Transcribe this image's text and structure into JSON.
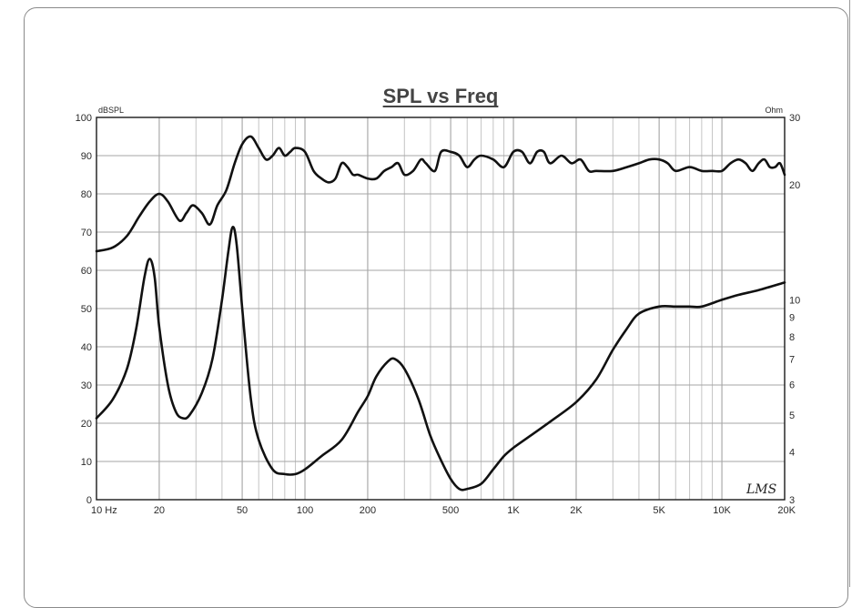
{
  "chart_data": {
    "type": "line",
    "title": "SPL vs Freq",
    "left_unit": "dBSPL",
    "right_unit": "Ohm",
    "x_axis": {
      "scale": "log",
      "range": [
        10,
        20000
      ],
      "tick_labels": [
        {
          "v": 10,
          "t": "10  Hz"
        },
        {
          "v": 20,
          "t": "20"
        },
        {
          "v": 50,
          "t": "50"
        },
        {
          "v": 100,
          "t": "100"
        },
        {
          "v": 200,
          "t": "200"
        },
        {
          "v": 500,
          "t": "500"
        },
        {
          "v": 1000,
          "t": "1K"
        },
        {
          "v": 2000,
          "t": "2K"
        },
        {
          "v": 5000,
          "t": "5K"
        },
        {
          "v": 10000,
          "t": "10K"
        },
        {
          "v": 20000,
          "t": "20K"
        }
      ]
    },
    "y_left": {
      "range": [
        0,
        100
      ],
      "ticks": [
        0,
        10,
        20,
        30,
        40,
        50,
        60,
        70,
        80,
        90,
        100
      ]
    },
    "y_right": {
      "scale": "log",
      "range": [
        3,
        30
      ],
      "ticks": [
        3,
        4,
        5,
        6,
        7,
        8,
        9,
        10,
        20,
        30
      ]
    },
    "grid": true,
    "series": [
      {
        "axis": "left",
        "points": [
          [
            10,
            65
          ],
          [
            12,
            66
          ],
          [
            14,
            69
          ],
          [
            16,
            74
          ],
          [
            18,
            78
          ],
          [
            20,
            80
          ],
          [
            22,
            78
          ],
          [
            25,
            73
          ],
          [
            27,
            75
          ],
          [
            29,
            77
          ],
          [
            32,
            75
          ],
          [
            35,
            72
          ],
          [
            38,
            77
          ],
          [
            42,
            81
          ],
          [
            46,
            88
          ],
          [
            50,
            93
          ],
          [
            55,
            95
          ],
          [
            60,
            92
          ],
          [
            65,
            89
          ],
          [
            70,
            90
          ],
          [
            75,
            92
          ],
          [
            80,
            90
          ],
          [
            85,
            91
          ],
          [
            90,
            92
          ],
          [
            100,
            91
          ],
          [
            110,
            86
          ],
          [
            120,
            84
          ],
          [
            130,
            83
          ],
          [
            140,
            84
          ],
          [
            150,
            88
          ],
          [
            160,
            87
          ],
          [
            170,
            85
          ],
          [
            180,
            85
          ],
          [
            200,
            84
          ],
          [
            220,
            84
          ],
          [
            240,
            86
          ],
          [
            260,
            87
          ],
          [
            280,
            88
          ],
          [
            300,
            85
          ],
          [
            330,
            86
          ],
          [
            360,
            89
          ],
          [
            380,
            88
          ],
          [
            420,
            86
          ],
          [
            450,
            91
          ],
          [
            500,
            91
          ],
          [
            550,
            90
          ],
          [
            600,
            87
          ],
          [
            650,
            89
          ],
          [
            700,
            90
          ],
          [
            800,
            89
          ],
          [
            900,
            87
          ],
          [
            1000,
            91
          ],
          [
            1100,
            91
          ],
          [
            1200,
            88
          ],
          [
            1300,
            91
          ],
          [
            1400,
            91
          ],
          [
            1500,
            88
          ],
          [
            1700,
            90
          ],
          [
            1900,
            88
          ],
          [
            2100,
            89
          ],
          [
            2300,
            86
          ],
          [
            2500,
            86
          ],
          [
            3000,
            86
          ],
          [
            3500,
            87
          ],
          [
            4000,
            88
          ],
          [
            4500,
            89
          ],
          [
            5000,
            89
          ],
          [
            5500,
            88
          ],
          [
            6000,
            86
          ],
          [
            7000,
            87
          ],
          [
            8000,
            86
          ],
          [
            9000,
            86
          ],
          [
            10000,
            86
          ],
          [
            11000,
            88
          ],
          [
            12000,
            89
          ],
          [
            13000,
            88
          ],
          [
            14000,
            86
          ],
          [
            15000,
            88
          ],
          [
            16000,
            89
          ],
          [
            17000,
            87
          ],
          [
            18000,
            87
          ],
          [
            19000,
            88
          ],
          [
            20000,
            85
          ]
        ]
      },
      {
        "axis": "right",
        "points": [
          [
            10,
            4.9
          ],
          [
            12,
            5.5
          ],
          [
            14,
            6.6
          ],
          [
            15.5,
            8.4
          ],
          [
            17,
            11.5
          ],
          [
            18,
            12.8
          ],
          [
            19,
            11.5
          ],
          [
            20,
            8.5
          ],
          [
            22,
            6.0
          ],
          [
            24,
            5.1
          ],
          [
            26,
            4.9
          ],
          [
            28,
            5.0
          ],
          [
            32,
            5.7
          ],
          [
            36,
            7.0
          ],
          [
            40,
            10.0
          ],
          [
            43,
            13.5
          ],
          [
            45,
            15.5
          ],
          [
            47,
            14.0
          ],
          [
            50,
            9.5
          ],
          [
            55,
            5.5
          ],
          [
            60,
            4.3
          ],
          [
            70,
            3.6
          ],
          [
            80,
            3.5
          ],
          [
            90,
            3.5
          ],
          [
            100,
            3.6
          ],
          [
            120,
            3.9
          ],
          [
            150,
            4.3
          ],
          [
            180,
            5.1
          ],
          [
            200,
            5.6
          ],
          [
            220,
            6.3
          ],
          [
            250,
            6.9
          ],
          [
            270,
            7.0
          ],
          [
            300,
            6.6
          ],
          [
            350,
            5.5
          ],
          [
            400,
            4.4
          ],
          [
            450,
            3.8
          ],
          [
            500,
            3.4
          ],
          [
            550,
            3.2
          ],
          [
            600,
            3.2
          ],
          [
            700,
            3.3
          ],
          [
            800,
            3.6
          ],
          [
            900,
            3.9
          ],
          [
            1000,
            4.1
          ],
          [
            1200,
            4.4
          ],
          [
            1500,
            4.8
          ],
          [
            2000,
            5.4
          ],
          [
            2500,
            6.2
          ],
          [
            3000,
            7.4
          ],
          [
            3500,
            8.4
          ],
          [
            4000,
            9.2
          ],
          [
            5000,
            9.6
          ],
          [
            6000,
            9.6
          ],
          [
            7000,
            9.6
          ],
          [
            8000,
            9.6
          ],
          [
            10000,
            10.0
          ],
          [
            12000,
            10.3
          ],
          [
            15000,
            10.6
          ],
          [
            20000,
            11.1
          ]
        ]
      }
    ],
    "annotation": "LMS"
  }
}
